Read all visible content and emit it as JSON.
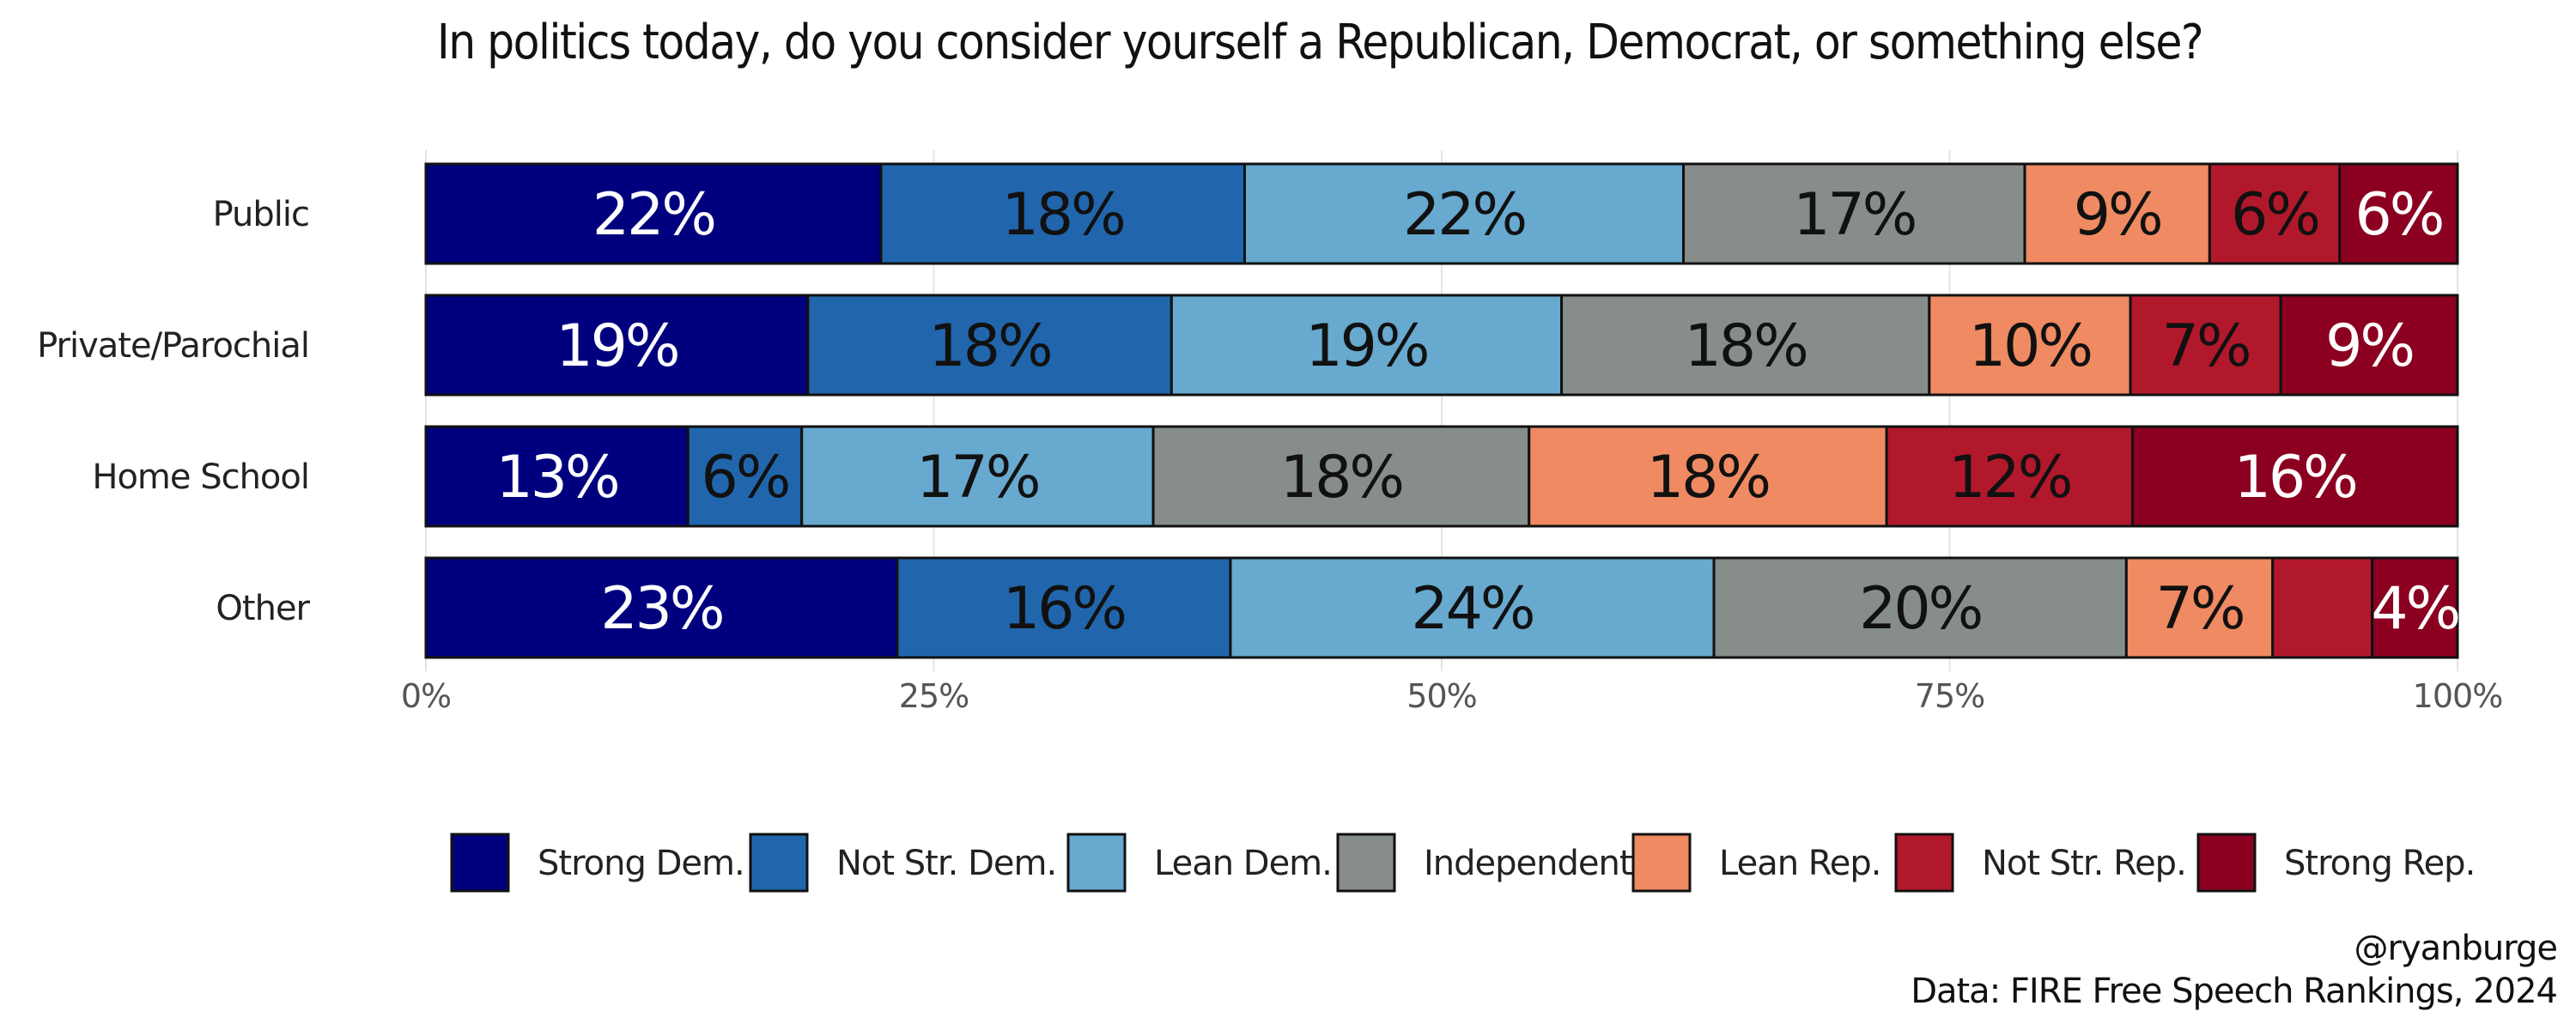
{
  "chart_data": {
    "type": "bar",
    "orientation": "horizontal",
    "stacked": true,
    "title": "In politics today, do you consider yourself a Republican, Democrat, or something else?",
    "categories": [
      "Public",
      "Private/Parochial",
      "Home School",
      "Other"
    ],
    "x_ticks": [
      "0%",
      "25%",
      "50%",
      "75%",
      "100%"
    ],
    "xlim": [
      0,
      100
    ],
    "grid": true,
    "legend_position": "bottom",
    "series": [
      {
        "name": "Strong Dem.",
        "color": "#00007F",
        "label_color": "#ffffff",
        "values": [
          22.4,
          18.8,
          12.9,
          23.2
        ],
        "labels": [
          "22%",
          "19%",
          "13%",
          "23%"
        ]
      },
      {
        "name": "Not Str. Dem.",
        "color": "#2166AC",
        "label_color": "#111111",
        "values": [
          17.9,
          17.9,
          5.6,
          16.4
        ],
        "labels": [
          "18%",
          "18%",
          "6%",
          "16%"
        ]
      },
      {
        "name": "Lean Dem.",
        "color": "#67A9CF",
        "label_color": "#111111",
        "values": [
          21.6,
          19.2,
          17.3,
          23.8
        ],
        "labels": [
          "22%",
          "19%",
          "17%",
          "24%"
        ]
      },
      {
        "name": "Independent",
        "color": "#868D8B",
        "label_color": "#111111",
        "values": [
          16.8,
          18.1,
          18.5,
          20.3
        ],
        "labels": [
          "17%",
          "18%",
          "18%",
          "20%"
        ]
      },
      {
        "name": "Lean Rep.",
        "color": "#EF8A62",
        "label_color": "#111111",
        "values": [
          9.1,
          9.9,
          17.6,
          7.2
        ],
        "labels": [
          "9%",
          "10%",
          "18%",
          "7%"
        ]
      },
      {
        "name": "Not Str. Rep.",
        "color": "#B2182B",
        "label_color": "#111111",
        "values": [
          6.4,
          7.4,
          12.1,
          4.9
        ],
        "labels": [
          "6%",
          "7%",
          "12%",
          ""
        ]
      },
      {
        "name": "Strong Rep.",
        "color": "#8B0020",
        "label_color": "#ffffff",
        "values": [
          5.8,
          8.7,
          16.0,
          4.2
        ],
        "labels": [
          "6%",
          "9%",
          "16%",
          "4%"
        ]
      }
    ]
  },
  "caption": {
    "author": "@ryanburge",
    "source": "Data: FIRE Free Speech Rankings, 2024"
  }
}
